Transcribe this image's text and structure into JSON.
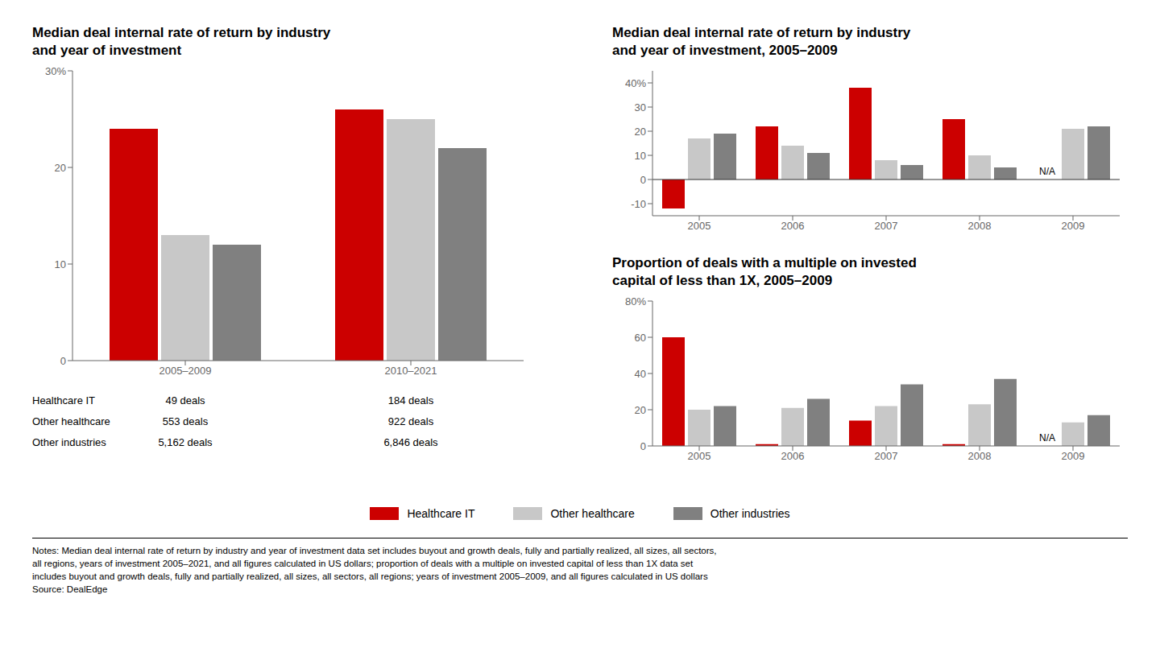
{
  "chart_data": [
    {
      "type": "bar",
      "title": "Median deal internal rate of return by industry\nand year of investment",
      "categories": [
        "2005–2009",
        "2010–2021"
      ],
      "series": [
        {
          "name": "Healthcare IT",
          "color": "#CC0000",
          "values": [
            24,
            26
          ]
        },
        {
          "name": "Other healthcare",
          "color": "#C8C8C8",
          "values": [
            13,
            25
          ]
        },
        {
          "name": "Other industries",
          "color": "#808080",
          "values": [
            12,
            22
          ]
        }
      ],
      "ylim": [
        0,
        30
      ],
      "yticks": [
        0,
        10,
        20,
        {
          "value": 30,
          "label": "30%"
        }
      ],
      "grid": false,
      "legend": "bottom",
      "table": [
        {
          "label": "Healthcare IT",
          "values": [
            "49 deals",
            "184 deals"
          ]
        },
        {
          "label": "Other healthcare",
          "values": [
            "553 deals",
            "922 deals"
          ]
        },
        {
          "label": "Other industries",
          "values": [
            "5,162 deals",
            "6,846 deals"
          ]
        }
      ]
    },
    {
      "type": "bar",
      "title": "Median deal internal rate of return by industry\nand year of investment, 2005–2009",
      "categories": [
        "2005",
        "2006",
        "2007",
        "2008",
        "2009"
      ],
      "series": [
        {
          "name": "Healthcare IT",
          "color": "#CC0000",
          "values": [
            -12,
            22,
            38,
            25,
            null
          ]
        },
        {
          "name": "Other healthcare",
          "color": "#C8C8C8",
          "values": [
            17,
            14,
            8,
            10,
            21
          ]
        },
        {
          "name": "Other industries",
          "color": "#808080",
          "values": [
            19,
            11,
            6,
            5,
            22
          ]
        }
      ],
      "ylim": [
        -15,
        45
      ],
      "yticks": [
        -10,
        0,
        10,
        20,
        30,
        {
          "value": 40,
          "label": "40%"
        }
      ],
      "grid": false,
      "annotations": [
        {
          "text": "N/A",
          "category": "2009",
          "series": "Healthcare IT"
        }
      ]
    },
    {
      "type": "bar",
      "title": "Proportion of deals with a multiple on invested\ncapital of less than 1X, 2005–2009",
      "categories": [
        "2005",
        "2006",
        "2007",
        "2008",
        "2009"
      ],
      "series": [
        {
          "name": "Healthcare IT",
          "color": "#CC0000",
          "values": [
            60,
            1,
            14,
            1,
            null
          ]
        },
        {
          "name": "Other healthcare",
          "color": "#C8C8C8",
          "values": [
            20,
            21,
            22,
            23,
            13
          ]
        },
        {
          "name": "Other industries",
          "color": "#808080",
          "values": [
            22,
            26,
            34,
            37,
            17
          ]
        }
      ],
      "ylim": [
        0,
        80
      ],
      "yticks": [
        0,
        20,
        40,
        60,
        {
          "value": 80,
          "label": "80%"
        }
      ],
      "grid": false,
      "annotations": [
        {
          "text": "N/A",
          "category": "2009",
          "series": "Healthcare IT"
        }
      ]
    }
  ],
  "notes": [
    "Notes: Median deal internal rate of return by industry and year of investment data set includes buyout and growth deals, fully and partially realized, all sizes, all sectors,",
    "all regions, years of investment 2005–2021, and all figures calculated in US dollars; proportion of deals with a multiple on invested capital of less than 1X data set",
    "includes buyout and growth deals, fully and partially realized, all sizes, all sectors, all regions; years of investment 2005–2009, and all figures calculated in US dollars",
    "Source: DealEdge"
  ]
}
